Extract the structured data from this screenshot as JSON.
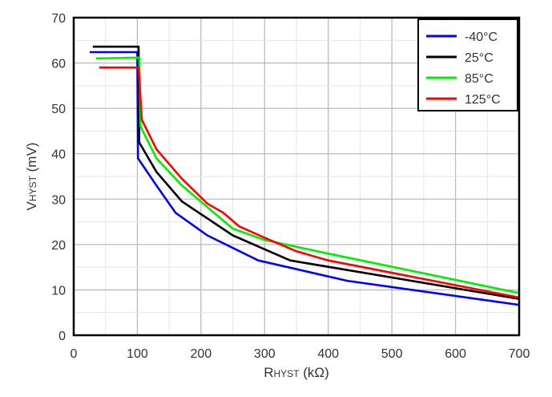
{
  "chart_data": {
    "type": "line",
    "title": "",
    "xlabel": {
      "main": "R",
      "sub": "HYST",
      "unit": " (kΩ)"
    },
    "ylabel": {
      "main": "V",
      "sub": "HYST",
      "unit": " (mV)"
    },
    "xlim": [
      0,
      700
    ],
    "ylim": [
      0,
      70
    ],
    "xticks": [
      0,
      100,
      200,
      300,
      400,
      500,
      600,
      700
    ],
    "yticks": [
      0,
      10,
      20,
      30,
      40,
      50,
      60,
      70
    ],
    "grid": true,
    "legend_position": "top-right",
    "series": [
      {
        "name": "-40°C",
        "color": "#0000ff",
        "points": [
          [
            25,
            62.4
          ],
          [
            100,
            62.4
          ],
          [
            101,
            39
          ],
          [
            130,
            33
          ],
          [
            160,
            27
          ],
          [
            210,
            22
          ],
          [
            290,
            16.5
          ],
          [
            430,
            12
          ],
          [
            700,
            6.7
          ]
        ]
      },
      {
        "name": "25°C",
        "color": "#000000",
        "points": [
          [
            30,
            63.6
          ],
          [
            102,
            63.6
          ],
          [
            103,
            42.5
          ],
          [
            130,
            36
          ],
          [
            170,
            29.5
          ],
          [
            250,
            22
          ],
          [
            340,
            16.5
          ],
          [
            700,
            8
          ]
        ]
      },
      {
        "name": "85°C",
        "color": "#00ee00",
        "points": [
          [
            35,
            61
          ],
          [
            103,
            61.2
          ],
          [
            105,
            46
          ],
          [
            130,
            39
          ],
          [
            170,
            33
          ],
          [
            250,
            23.5
          ],
          [
            300,
            21
          ],
          [
            400,
            18
          ],
          [
            700,
            9.3
          ]
        ]
      },
      {
        "name": "125°C",
        "color": "#ff0000",
        "points": [
          [
            40,
            59
          ],
          [
            102,
            59
          ],
          [
            107,
            47.5
          ],
          [
            130,
            41
          ],
          [
            170,
            34.5
          ],
          [
            210,
            29
          ],
          [
            235,
            27
          ],
          [
            260,
            24
          ],
          [
            300,
            21.5
          ],
          [
            350,
            18.5
          ],
          [
            400,
            16.5
          ],
          [
            700,
            8.3
          ]
        ]
      }
    ]
  }
}
